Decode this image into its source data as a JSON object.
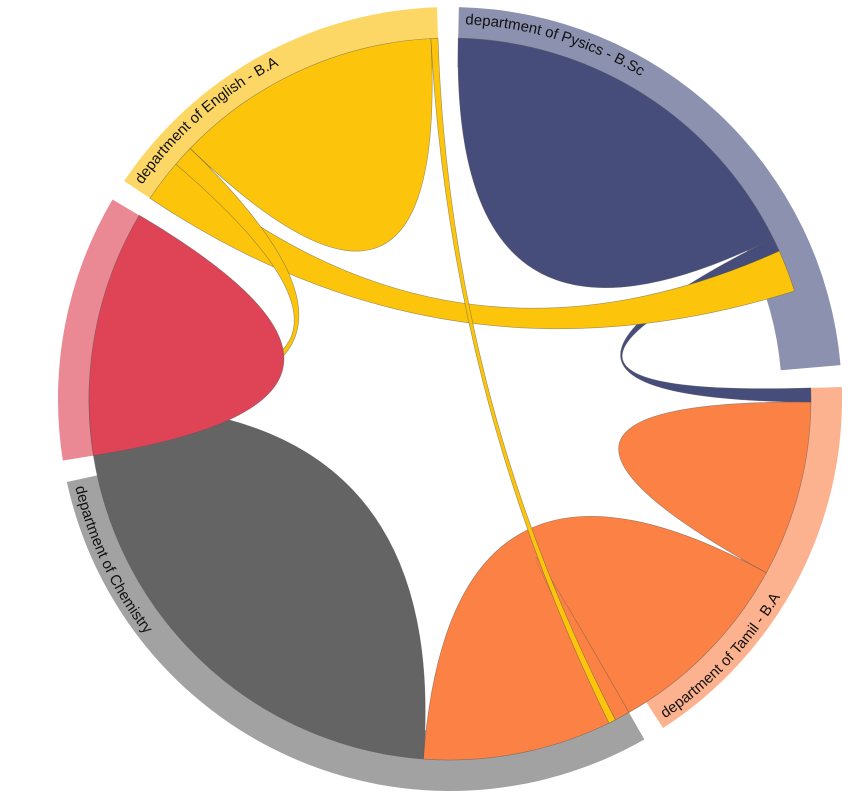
{
  "chart_data": {
    "type": "chord",
    "title": "",
    "groups": [
      {
        "name": "department of Pysics - B.Sc",
        "label": "department of Pysics - B.Sc",
        "color": "#464d7a",
        "outer_color": "#8c91b0",
        "value": 74
      },
      {
        "name": "department of Tamil - B.A",
        "label": "department of Tamil - B.A",
        "color": "#fb8144",
        "outer_color": "#fdb28f",
        "value": 52
      },
      {
        "name": "department of Chemistry",
        "label": "department of Chemistry",
        "color": "#646464",
        "outer_color": "#a2a2a2",
        "value": 95
      },
      {
        "name": "(unlabeled red group)",
        "label": "",
        "color": "#de4356",
        "outer_color": "#ea8894",
        "value": 35
      },
      {
        "name": "department of English - B.A",
        "label": "department of English - B.A",
        "color": "#fcc50b",
        "outer_color": "#fdd766",
        "value": 48
      }
    ],
    "links": [
      {
        "source": "department of Pysics - B.Sc",
        "target": "department of Pysics - B.Sc",
        "value": 55
      },
      {
        "source": "department of Pysics - B.Sc",
        "target": "department of Tamil - B.A",
        "value": 2
      },
      {
        "source": "department of English - B.A",
        "target": "department of Pysics - B.Sc",
        "value": 6
      },
      {
        "source": "department of Tamil - B.A",
        "target": "department of Tamil - B.A",
        "value": 25
      },
      {
        "source": "department of Tamil - B.A",
        "target": "department of Chemistry",
        "value": 30
      },
      {
        "source": "department of Chemistry",
        "target": "department of Chemistry",
        "value": 75
      },
      {
        "source": "department of English - B.A",
        "target": "department of Chemistry",
        "value": 3
      },
      {
        "source": "(unlabeled red group)",
        "target": "(unlabeled red group)",
        "value": 35
      },
      {
        "source": "department of English - B.A",
        "target": "department of English - B.A",
        "value": 38
      },
      {
        "source": "department of English - B.A",
        "target": "department of Tamil - B.A",
        "value": 1
      }
    ]
  }
}
